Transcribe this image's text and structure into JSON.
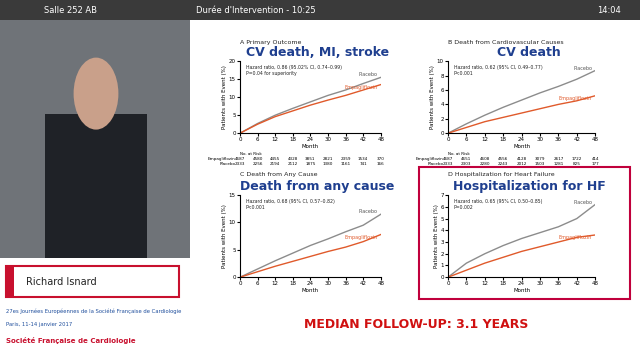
{
  "header": {
    "room": "Salle 252 AB",
    "duration": "Durée d'Intervention - 10:25",
    "clock": "14:04"
  },
  "speaker": "Richard Isnard",
  "logo": {
    "event": "27es Journées Européennes de la Société Française de Cardiologie",
    "place": "Paris, 11-14 janvier 2017",
    "society": "Société Française de Cardiologie"
  },
  "slide": {
    "footer": "MEDIAN FOLLOW-UP: 3.1 YEARS"
  },
  "chart_data": [
    {
      "type": "line",
      "subtitle": "A Primary Outcome",
      "title": "CV death, MI, stroke",
      "x_label": "Month",
      "y_label": "Patients with Event (%)",
      "annotations": [
        "Hazard ratio, 0.86 (95.02% CI, 0.74–0.99)\nP=0.04 for superiority"
      ],
      "x": [
        0,
        6,
        12,
        18,
        24,
        30,
        36,
        42,
        48
      ],
      "series": [
        {
          "name": "Placebo",
          "color": "#8c8c8c",
          "values": [
            0,
            2.7,
            5.0,
            6.9,
            8.7,
            10.5,
            12.0,
            13.8,
            15.5
          ]
        },
        {
          "name": "Empagliflozin",
          "color": "#e05a2b",
          "values": [
            0,
            2.5,
            4.6,
            6.2,
            7.8,
            9.2,
            10.5,
            12.0,
            13.5
          ]
        }
      ],
      "xlim": [
        0,
        48
      ],
      "xticks": [
        0,
        6,
        12,
        18,
        24,
        30,
        36,
        42,
        48
      ],
      "ylim": [
        0,
        20
      ],
      "yticks": [
        0,
        5,
        10,
        15,
        20
      ],
      "at_risk": {
        "title": "No. at Risk",
        "rows": [
          {
            "name": "Empagliflozin",
            "values": [
              4687,
              4580,
              4455,
              4328,
              3851,
              2821,
              2359,
              1534,
              370
            ]
          },
          {
            "name": "Placebo",
            "values": [
              2333,
              2256,
              2194,
              2112,
              1875,
              1380,
              1161,
              741,
              166
            ]
          }
        ]
      }
    },
    {
      "type": "line",
      "subtitle": "B Death from Cardiovascular Causes",
      "title": "CV death",
      "x_label": "Month",
      "y_label": "Patients with Event (%)",
      "annotations": [
        "Hazard ratio, 0.62 (95% CI, 0.49–0.77)\nP<0.001"
      ],
      "x": [
        0,
        6,
        12,
        18,
        24,
        30,
        36,
        42,
        48
      ],
      "series": [
        {
          "name": "Placebo",
          "color": "#8c8c8c",
          "values": [
            0,
            1.3,
            2.5,
            3.6,
            4.6,
            5.6,
            6.5,
            7.5,
            8.7
          ]
        },
        {
          "name": "Empagliflozin",
          "color": "#e05a2b",
          "values": [
            0,
            0.8,
            1.6,
            2.2,
            2.8,
            3.4,
            4.0,
            4.5,
            5.2
          ]
        }
      ],
      "xlim": [
        0,
        48
      ],
      "xticks": [
        0,
        6,
        12,
        18,
        24,
        30,
        36,
        42,
        48
      ],
      "ylim": [
        0,
        10
      ],
      "yticks": [
        0,
        2,
        4,
        6,
        8,
        10
      ],
      "at_risk": {
        "title": "No. at Risk",
        "rows": [
          {
            "name": "Empagliflozin",
            "values": [
              4687,
              4651,
              4608,
              4556,
              4128,
              3079,
              2617,
              1722,
              414
            ]
          },
          {
            "name": "Placebo",
            "values": [
              2333,
              2303,
              2280,
              2243,
              2012,
              1503,
              1281,
              825,
              177
            ]
          }
        ]
      }
    },
    {
      "type": "line",
      "subtitle": "C Death from Any Cause",
      "title": "Death from any cause",
      "x_label": "Month",
      "y_label": "Patients with Event (%)",
      "annotations": [
        "Hazard ratio, 0.68 (95% CI, 0.57–0.82)\nP<0.001"
      ],
      "x": [
        0,
        6,
        12,
        18,
        24,
        30,
        36,
        42,
        48
      ],
      "series": [
        {
          "name": "Placebo",
          "color": "#8c8c8c",
          "values": [
            0,
            1.5,
            3.0,
            4.4,
            5.8,
            7.0,
            8.3,
            9.5,
            11.5
          ]
        },
        {
          "name": "Empagliflozin",
          "color": "#e05a2b",
          "values": [
            0,
            1.0,
            2.0,
            2.9,
            3.8,
            4.7,
            5.5,
            6.5,
            7.8
          ]
        }
      ],
      "xlim": [
        0,
        48
      ],
      "xticks": [
        0,
        6,
        12,
        18,
        24,
        30,
        36,
        42,
        48
      ],
      "ylim": [
        0,
        15
      ],
      "yticks": [
        0,
        5,
        10,
        15
      ]
    },
    {
      "type": "line",
      "subtitle": "D Hospitalization for Heart Failure",
      "title": "Hospitalization for HF",
      "x_label": "Month",
      "y_label": "Patients with Event (%)",
      "annotations": [
        "Hazard ratio, 0.65 (95% CI, 0.50–0.85)\nP=0.002"
      ],
      "x": [
        0,
        6,
        12,
        18,
        24,
        30,
        36,
        42,
        48
      ],
      "series": [
        {
          "name": "Placebo",
          "color": "#8c8c8c",
          "values": [
            0,
            1.2,
            2.0,
            2.7,
            3.3,
            3.8,
            4.3,
            5.0,
            6.2
          ]
        },
        {
          "name": "Empagliflozin",
          "color": "#e05a2b",
          "values": [
            0,
            0.6,
            1.2,
            1.7,
            2.2,
            2.6,
            3.0,
            3.4,
            3.6
          ]
        }
      ],
      "xlim": [
        0,
        48
      ],
      "xticks": [
        0,
        6,
        12,
        18,
        24,
        30,
        36,
        42,
        48
      ],
      "ylim": [
        0,
        7
      ],
      "yticks": [
        0,
        1,
        2,
        3,
        4,
        5,
        6,
        7
      ]
    }
  ]
}
